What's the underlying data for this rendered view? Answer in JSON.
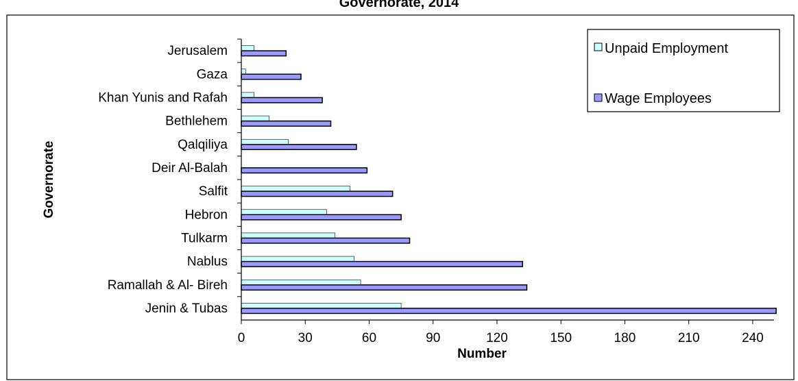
{
  "chart_data": {
    "type": "bar",
    "orientation": "horizontal",
    "title": "Governorate, 2014",
    "xlabel": "Number",
    "ylabel": "Governorate",
    "xlim": [
      0,
      250
    ],
    "xticks": [
      "0",
      "30",
      "60",
      "90",
      "120",
      "150",
      "180",
      "210",
      "240"
    ],
    "grid": false,
    "legend_position": "top-right",
    "categories": [
      "Jerusalem",
      "Gaza",
      "Khan Yunis and Rafah",
      "Bethlehem",
      "Qalqiliya",
      "Deir Al-Balah",
      "Salfit",
      "Hebron",
      "Tulkarm",
      "Nablus",
      "Ramallah & Al- Bireh",
      "Jenin & Tubas"
    ],
    "series": [
      {
        "name": "Unpaid Employment",
        "color": "#ccffff",
        "values": [
          6,
          2,
          6,
          13,
          22,
          0,
          51,
          40,
          44,
          53,
          56,
          75
        ]
      },
      {
        "name": "Wage Employees",
        "color": "#9999ff",
        "values": [
          21,
          28,
          38,
          42,
          54,
          59,
          71,
          75,
          79,
          132,
          134,
          251
        ]
      }
    ]
  }
}
